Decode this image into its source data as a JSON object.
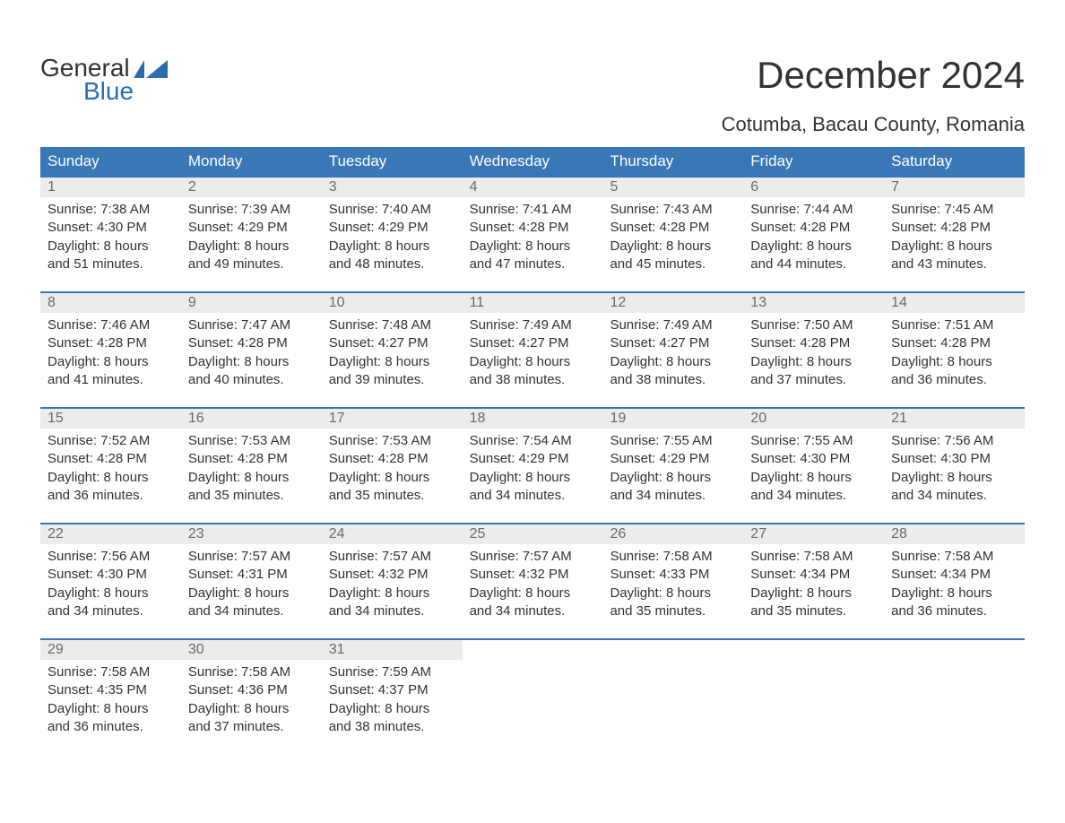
{
  "logo": {
    "text_top": "General",
    "text_bottom": "Blue"
  },
  "colors": {
    "header_bg": "#3a77b7",
    "header_text": "#ffffff",
    "daynum_bg": "#ececec",
    "daynum_text": "#6a6a6a",
    "body_text": "#333333",
    "border": "#3a77b7",
    "logo_blue": "#2b6cb0"
  },
  "title": "December 2024",
  "location": "Cotumba, Bacau County, Romania",
  "weekdays": [
    "Sunday",
    "Monday",
    "Tuesday",
    "Wednesday",
    "Thursday",
    "Friday",
    "Saturday"
  ],
  "weeks": [
    [
      {
        "day": "1",
        "sunrise": "Sunrise: 7:38 AM",
        "sunset": "Sunset: 4:30 PM",
        "daylight1": "Daylight: 8 hours",
        "daylight2": "and 51 minutes."
      },
      {
        "day": "2",
        "sunrise": "Sunrise: 7:39 AM",
        "sunset": "Sunset: 4:29 PM",
        "daylight1": "Daylight: 8 hours",
        "daylight2": "and 49 minutes."
      },
      {
        "day": "3",
        "sunrise": "Sunrise: 7:40 AM",
        "sunset": "Sunset: 4:29 PM",
        "daylight1": "Daylight: 8 hours",
        "daylight2": "and 48 minutes."
      },
      {
        "day": "4",
        "sunrise": "Sunrise: 7:41 AM",
        "sunset": "Sunset: 4:28 PM",
        "daylight1": "Daylight: 8 hours",
        "daylight2": "and 47 minutes."
      },
      {
        "day": "5",
        "sunrise": "Sunrise: 7:43 AM",
        "sunset": "Sunset: 4:28 PM",
        "daylight1": "Daylight: 8 hours",
        "daylight2": "and 45 minutes."
      },
      {
        "day": "6",
        "sunrise": "Sunrise: 7:44 AM",
        "sunset": "Sunset: 4:28 PM",
        "daylight1": "Daylight: 8 hours",
        "daylight2": "and 44 minutes."
      },
      {
        "day": "7",
        "sunrise": "Sunrise: 7:45 AM",
        "sunset": "Sunset: 4:28 PM",
        "daylight1": "Daylight: 8 hours",
        "daylight2": "and 43 minutes."
      }
    ],
    [
      {
        "day": "8",
        "sunrise": "Sunrise: 7:46 AM",
        "sunset": "Sunset: 4:28 PM",
        "daylight1": "Daylight: 8 hours",
        "daylight2": "and 41 minutes."
      },
      {
        "day": "9",
        "sunrise": "Sunrise: 7:47 AM",
        "sunset": "Sunset: 4:28 PM",
        "daylight1": "Daylight: 8 hours",
        "daylight2": "and 40 minutes."
      },
      {
        "day": "10",
        "sunrise": "Sunrise: 7:48 AM",
        "sunset": "Sunset: 4:27 PM",
        "daylight1": "Daylight: 8 hours",
        "daylight2": "and 39 minutes."
      },
      {
        "day": "11",
        "sunrise": "Sunrise: 7:49 AM",
        "sunset": "Sunset: 4:27 PM",
        "daylight1": "Daylight: 8 hours",
        "daylight2": "and 38 minutes."
      },
      {
        "day": "12",
        "sunrise": "Sunrise: 7:49 AM",
        "sunset": "Sunset: 4:27 PM",
        "daylight1": "Daylight: 8 hours",
        "daylight2": "and 38 minutes."
      },
      {
        "day": "13",
        "sunrise": "Sunrise: 7:50 AM",
        "sunset": "Sunset: 4:28 PM",
        "daylight1": "Daylight: 8 hours",
        "daylight2": "and 37 minutes."
      },
      {
        "day": "14",
        "sunrise": "Sunrise: 7:51 AM",
        "sunset": "Sunset: 4:28 PM",
        "daylight1": "Daylight: 8 hours",
        "daylight2": "and 36 minutes."
      }
    ],
    [
      {
        "day": "15",
        "sunrise": "Sunrise: 7:52 AM",
        "sunset": "Sunset: 4:28 PM",
        "daylight1": "Daylight: 8 hours",
        "daylight2": "and 36 minutes."
      },
      {
        "day": "16",
        "sunrise": "Sunrise: 7:53 AM",
        "sunset": "Sunset: 4:28 PM",
        "daylight1": "Daylight: 8 hours",
        "daylight2": "and 35 minutes."
      },
      {
        "day": "17",
        "sunrise": "Sunrise: 7:53 AM",
        "sunset": "Sunset: 4:28 PM",
        "daylight1": "Daylight: 8 hours",
        "daylight2": "and 35 minutes."
      },
      {
        "day": "18",
        "sunrise": "Sunrise: 7:54 AM",
        "sunset": "Sunset: 4:29 PM",
        "daylight1": "Daylight: 8 hours",
        "daylight2": "and 34 minutes."
      },
      {
        "day": "19",
        "sunrise": "Sunrise: 7:55 AM",
        "sunset": "Sunset: 4:29 PM",
        "daylight1": "Daylight: 8 hours",
        "daylight2": "and 34 minutes."
      },
      {
        "day": "20",
        "sunrise": "Sunrise: 7:55 AM",
        "sunset": "Sunset: 4:30 PM",
        "daylight1": "Daylight: 8 hours",
        "daylight2": "and 34 minutes."
      },
      {
        "day": "21",
        "sunrise": "Sunrise: 7:56 AM",
        "sunset": "Sunset: 4:30 PM",
        "daylight1": "Daylight: 8 hours",
        "daylight2": "and 34 minutes."
      }
    ],
    [
      {
        "day": "22",
        "sunrise": "Sunrise: 7:56 AM",
        "sunset": "Sunset: 4:30 PM",
        "daylight1": "Daylight: 8 hours",
        "daylight2": "and 34 minutes."
      },
      {
        "day": "23",
        "sunrise": "Sunrise: 7:57 AM",
        "sunset": "Sunset: 4:31 PM",
        "daylight1": "Daylight: 8 hours",
        "daylight2": "and 34 minutes."
      },
      {
        "day": "24",
        "sunrise": "Sunrise: 7:57 AM",
        "sunset": "Sunset: 4:32 PM",
        "daylight1": "Daylight: 8 hours",
        "daylight2": "and 34 minutes."
      },
      {
        "day": "25",
        "sunrise": "Sunrise: 7:57 AM",
        "sunset": "Sunset: 4:32 PM",
        "daylight1": "Daylight: 8 hours",
        "daylight2": "and 34 minutes."
      },
      {
        "day": "26",
        "sunrise": "Sunrise: 7:58 AM",
        "sunset": "Sunset: 4:33 PM",
        "daylight1": "Daylight: 8 hours",
        "daylight2": "and 35 minutes."
      },
      {
        "day": "27",
        "sunrise": "Sunrise: 7:58 AM",
        "sunset": "Sunset: 4:34 PM",
        "daylight1": "Daylight: 8 hours",
        "daylight2": "and 35 minutes."
      },
      {
        "day": "28",
        "sunrise": "Sunrise: 7:58 AM",
        "sunset": "Sunset: 4:34 PM",
        "daylight1": "Daylight: 8 hours",
        "daylight2": "and 36 minutes."
      }
    ],
    [
      {
        "day": "29",
        "sunrise": "Sunrise: 7:58 AM",
        "sunset": "Sunset: 4:35 PM",
        "daylight1": "Daylight: 8 hours",
        "daylight2": "and 36 minutes."
      },
      {
        "day": "30",
        "sunrise": "Sunrise: 7:58 AM",
        "sunset": "Sunset: 4:36 PM",
        "daylight1": "Daylight: 8 hours",
        "daylight2": "and 37 minutes."
      },
      {
        "day": "31",
        "sunrise": "Sunrise: 7:59 AM",
        "sunset": "Sunset: 4:37 PM",
        "daylight1": "Daylight: 8 hours",
        "daylight2": "and 38 minutes."
      },
      {
        "empty": true
      },
      {
        "empty": true
      },
      {
        "empty": true
      },
      {
        "empty": true
      }
    ]
  ]
}
